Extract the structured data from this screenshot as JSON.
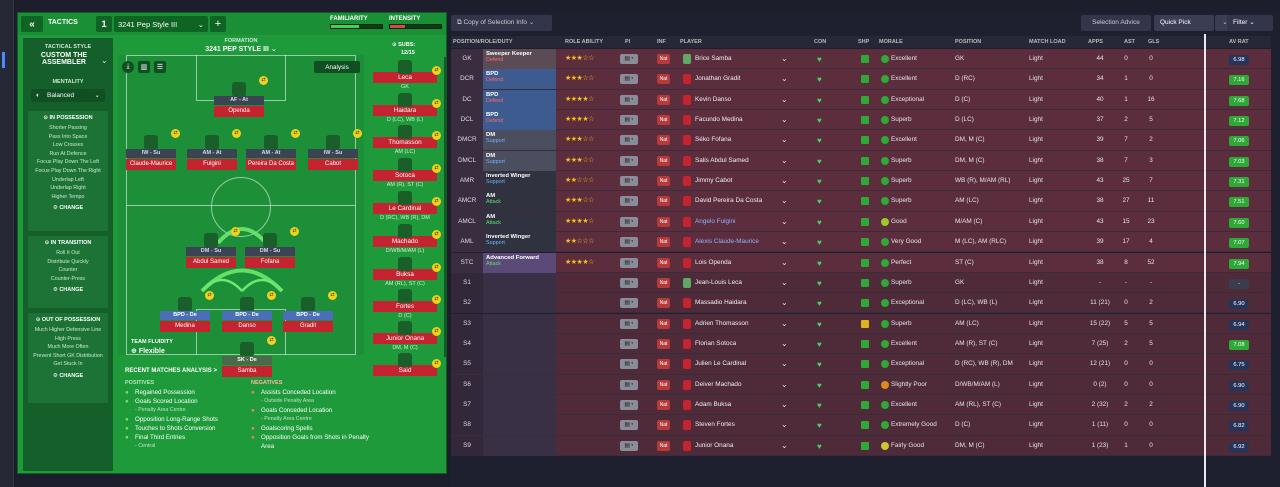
{
  "tactics": {
    "header_label": "TACTICS",
    "slot_number": "1",
    "name": "3241 Pep Style III",
    "familiarity_label": "FAMILIARITY",
    "intensity_label": "INTENSITY",
    "familiarity_level": 0.55,
    "intensity_level": 0.3,
    "style_label": "TACTICAL STYLE",
    "style_name": "CUSTOM THE ASSEMBLER",
    "mentality_label": "MENTALITY",
    "mentality_value": "Balanced",
    "formation_label": "FORMATION",
    "formation_name": "3241 PEP STYLE III",
    "subs_label": "SUBS:",
    "subs_value": "12/15",
    "analysis_button": "Analysis",
    "team_fluidity_label": "TEAM FLUIDITY",
    "team_fluidity_value": "Flexible"
  },
  "sections": [
    {
      "title": "IN POSSESSION",
      "lines": [
        "Shorter Passing",
        "Pass Into Space",
        "Low Crosses",
        "Run At Defence",
        "Focus Play Down The Left",
        "Focus Play Down The Right",
        "Underlap Left",
        "Underlap Right",
        "Higher Tempo"
      ],
      "action": "CHANGE"
    },
    {
      "title": "IN TRANSITION",
      "lines": [
        "Roll It Out",
        "Distribute Quickly",
        "Counter",
        "Counter-Press"
      ],
      "action": "CHANGE"
    },
    {
      "title": "OUT OF POSSESSION",
      "lines": [
        "Much Higher Defensive Line",
        "High Press",
        "Much More Often",
        "Prevent Short GK Distribution",
        "Get Stuck In"
      ],
      "action": "CHANGE"
    }
  ],
  "pitch_players": [
    {
      "tag": "AF - At",
      "name": "Openda"
    },
    {
      "tag": "IW - Su",
      "name": "Claude-Maurice"
    },
    {
      "tag": "AM - At",
      "name": "Fulgini"
    },
    {
      "tag": "AM - At",
      "name": "Pereira Da Costa"
    },
    {
      "tag": "IW - Su",
      "name": "Cabot"
    },
    {
      "tag": "DM - Su",
      "name": "Abdul Samed"
    },
    {
      "tag": "DM - Su",
      "name": "Fofana"
    },
    {
      "tag": "BPD - De",
      "name": "Medina"
    },
    {
      "tag": "BPD - De",
      "name": "Danso"
    },
    {
      "tag": "BPD - De",
      "name": "Gradit"
    },
    {
      "tag": "SK - De",
      "name": "Samba"
    }
  ],
  "subs": [
    {
      "name": "Leca",
      "pos": "GK"
    },
    {
      "name": "Haidara",
      "pos": "D (LC), WB (L)"
    },
    {
      "name": "Thomasson",
      "pos": "AM (LC)"
    },
    {
      "name": "Sotoca",
      "pos": "AM (R), ST (C)"
    },
    {
      "name": "Le Cardinal",
      "pos": "D (RC), WB (R), DM"
    },
    {
      "name": "Machado",
      "pos": "D/WB/M/AM (L)"
    },
    {
      "name": "Buksa",
      "pos": "AM (RL), ST (C)"
    },
    {
      "name": "Fortes",
      "pos": "D (C)"
    },
    {
      "name": "Junior Onana",
      "pos": "DM, M (C)"
    },
    {
      "name": "Said",
      "pos": ""
    }
  ],
  "recent_analysis": {
    "title": "RECENT MATCHES ANALYSIS >",
    "positives_label": "POSITIVES",
    "positives": [
      {
        "text": "Regained Possession",
        "sub": ""
      },
      {
        "text": "Goals Scored Location",
        "sub": "- Penalty Area Centre"
      },
      {
        "text": "Opposition Long-Range Shots",
        "sub": ""
      },
      {
        "text": "Touches to Shots Conversion",
        "sub": ""
      },
      {
        "text": "Final Third Entries",
        "sub": "- Central"
      }
    ],
    "negatives_label": "NEGATIVES",
    "negatives": [
      {
        "text": "Assists Conceded Location",
        "sub": "- Outside Penalty Area"
      },
      {
        "text": "Goals Conceded Location",
        "sub": "- Penalty Area Centre"
      },
      {
        "text": "Goalscoring Spells",
        "sub": ""
      },
      {
        "text": "Opposition Goals from Shots in Penalty Area",
        "sub": ""
      }
    ]
  },
  "toolbar": {
    "copy_label": "Copy of Selection Info",
    "selection_advice": "Selection Advice",
    "quick_pick": "Quick Pick",
    "filter": "Filter"
  },
  "columns": [
    "POSITION/ROLE/DUTY",
    "ROLE ABILITY",
    "PI",
    "INF",
    "PLAYER",
    "CON",
    "SHP",
    "MORALE",
    "POSITION",
    "MATCH LOAD",
    "APPS",
    "AST",
    "GLS",
    "AV RAT"
  ],
  "rows": [
    {
      "pos": "GK",
      "role": "Sweeper Keeper",
      "duty": "Defend",
      "stars": "★★★☆☆",
      "player": "Brice Samba",
      "morale": "Excellent",
      "position": "GK",
      "load": "Light",
      "apps": "44",
      "ast": "0",
      "gls": "0",
      "rat": "6.98",
      "rc": "#5a4b55",
      "mc": "#2ea836"
    },
    {
      "pos": "DCR",
      "role": "BPD",
      "duty": "Defend",
      "stars": "★★★☆☆",
      "player": "Jonathan Gradit",
      "morale": "Excellent",
      "position": "D (RC)",
      "load": "Light",
      "apps": "34",
      "ast": "1",
      "gls": "0",
      "rat": "7.16",
      "rc": "#3d5b8e",
      "mc": "#2ea836"
    },
    {
      "pos": "DC",
      "role": "BPD",
      "duty": "Defend",
      "stars": "★★★★☆",
      "player": "Kevin Danso",
      "morale": "Exceptional",
      "position": "D (C)",
      "load": "Light",
      "apps": "40",
      "ast": "1",
      "gls": "16",
      "rat": "7.68",
      "rc": "#3d5b8e",
      "mc": "#2ea836"
    },
    {
      "pos": "DCL",
      "role": "BPD",
      "duty": "Defend",
      "stars": "★★★★☆",
      "player": "Facundo Medina",
      "morale": "Superb",
      "position": "D (LC)",
      "load": "Light",
      "apps": "37",
      "ast": "2",
      "gls": "5",
      "rat": "7.12",
      "rc": "#3d5b8e",
      "mc": "#2ea836"
    },
    {
      "pos": "DMCR",
      "role": "DM",
      "duty": "Support",
      "stars": "★★★☆☆",
      "player": "Séko Fofana",
      "morale": "Excellent",
      "position": "DM, M (C)",
      "load": "Light",
      "apps": "39",
      "ast": "7",
      "gls": "2",
      "rat": "7.06",
      "rc": "#4b4e5f",
      "mc": "#2ea836"
    },
    {
      "pos": "DMCL",
      "role": "DM",
      "duty": "Support",
      "stars": "★★★☆☆",
      "player": "Salis Abdul Samed",
      "morale": "Superb",
      "position": "DM, M (C)",
      "load": "Light",
      "apps": "38",
      "ast": "7",
      "gls": "3",
      "rat": "7.03",
      "rc": "#4b4e5f",
      "mc": "#2ea836"
    },
    {
      "pos": "AMR",
      "role": "Inverted Winger",
      "duty": "Support",
      "stars": "★★☆☆☆",
      "player": "Jimmy Cabot",
      "morale": "Superb",
      "position": "WB (R), M/AM (RL)",
      "load": "Light",
      "apps": "43",
      "ast": "25",
      "gls": "7",
      "rat": "7.31",
      "rc": "#30323f",
      "mc": "#2ea836"
    },
    {
      "pos": "AMCR",
      "role": "AM",
      "duty": "Attack",
      "stars": "★★★☆☆",
      "player": "David Pereira Da Costa",
      "morale": "Superb",
      "position": "AM (LC)",
      "load": "Light",
      "apps": "38",
      "ast": "27",
      "gls": "11",
      "rat": "7.51",
      "rc": "#30323f",
      "mc": "#2ea836"
    },
    {
      "pos": "AMCL",
      "role": "AM",
      "duty": "Attack",
      "stars": "★★★★☆",
      "player": "Angelo Fulgini",
      "morale": "Good",
      "position": "M/AM (C)",
      "load": "Light",
      "apps": "43",
      "ast": "15",
      "gls": "23",
      "rat": "7.60",
      "rc": "#30323f",
      "mc": "#9bc92d"
    },
    {
      "pos": "AML",
      "role": "Inverted Winger",
      "duty": "Support",
      "stars": "★★☆☆☆",
      "player": "Alexis Claude-Maurice",
      "morale": "Very Good",
      "position": "M (LC), AM (RLC)",
      "load": "Light",
      "apps": "39",
      "ast": "17",
      "gls": "4",
      "rat": "7.07",
      "rc": "#30323f",
      "mc": "#2ea836"
    },
    {
      "pos": "STC",
      "role": "Advanced Forward",
      "duty": "Attack",
      "stars": "★★★★☆",
      "player": "Lois Openda",
      "morale": "Perfect",
      "position": "ST (C)",
      "load": "Light",
      "apps": "38",
      "ast": "8",
      "gls": "52",
      "rat": "7.94",
      "rc": "#5b4a78",
      "mc": "#2ea836"
    },
    {
      "pos": "S1",
      "role": "",
      "duty": "",
      "stars": "",
      "player": "Jean-Louis Leca",
      "morale": "Superb",
      "position": "GK",
      "load": "Light",
      "apps": "-",
      "ast": "-",
      "gls": "-",
      "rat": "-",
      "rc": "",
      "mc": "#2ea836"
    },
    {
      "pos": "S2",
      "role": "",
      "duty": "",
      "stars": "",
      "player": "Massadio Haidara",
      "morale": "Exceptional",
      "position": "D (LC), WB (L)",
      "load": "Light",
      "apps": "11 (21)",
      "ast": "0",
      "gls": "2",
      "rat": "6.90",
      "rc": "",
      "mc": "#2ea836"
    },
    {
      "pos": "S3",
      "role": "",
      "duty": "",
      "stars": "",
      "player": "Adrien Thomasson",
      "morale": "Superb",
      "position": "AM (LC)",
      "load": "Light",
      "apps": "15 (22)",
      "ast": "5",
      "gls": "5",
      "rat": "6.94",
      "rc": "",
      "mc": "#2ea836"
    },
    {
      "pos": "S4",
      "role": "",
      "duty": "",
      "stars": "",
      "player": "Florian Sotoca",
      "morale": "Excellent",
      "position": "AM (R), ST (C)",
      "load": "Light",
      "apps": "7 (25)",
      "ast": "2",
      "gls": "5",
      "rat": "7.08",
      "rc": "",
      "mc": "#2ea836"
    },
    {
      "pos": "S5",
      "role": "",
      "duty": "",
      "stars": "",
      "player": "Julien Le Cardinal",
      "morale": "Exceptional",
      "position": "D (RC), WB (R), DM",
      "load": "Light",
      "apps": "12 (21)",
      "ast": "0",
      "gls": "0",
      "rat": "6.75",
      "rc": "",
      "mc": "#2ea836"
    },
    {
      "pos": "S6",
      "role": "",
      "duty": "",
      "stars": "",
      "player": "Deiver Machado",
      "morale": "Slightly Poor",
      "position": "D/WB/M/AM (L)",
      "load": "Light",
      "apps": "0 (2)",
      "ast": "0",
      "gls": "0",
      "rat": "6.90",
      "rc": "",
      "mc": "#e08a1e"
    },
    {
      "pos": "S7",
      "role": "",
      "duty": "",
      "stars": "",
      "player": "Adam Buksa",
      "morale": "Excellent",
      "position": "AM (RL), ST (C)",
      "load": "Light",
      "apps": "2 (32)",
      "ast": "2",
      "gls": "2",
      "rat": "6.90",
      "rc": "",
      "mc": "#2ea836"
    },
    {
      "pos": "S8",
      "role": "",
      "duty": "",
      "stars": "",
      "player": "Steven Fortes",
      "morale": "Extremely Good",
      "position": "D (C)",
      "load": "Light",
      "apps": "1 (11)",
      "ast": "0",
      "gls": "0",
      "rat": "6.82",
      "rc": "",
      "mc": "#2ea836"
    },
    {
      "pos": "S9",
      "role": "",
      "duty": "",
      "stars": "",
      "player": "Junior Onana",
      "morale": "Fairly Good",
      "position": "DM, M (C)",
      "load": "Light",
      "apps": "1 (23)",
      "ast": "1",
      "gls": "0",
      "rat": "6.92",
      "rc": "",
      "mc": "#c9c92d"
    }
  ]
}
